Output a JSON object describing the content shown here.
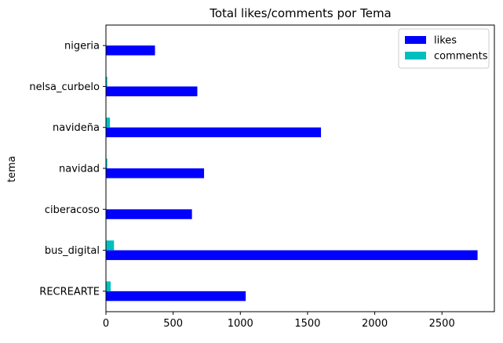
{
  "chart_data": {
    "type": "bar",
    "orientation": "horizontal",
    "title": "Total likes/comments por Tema",
    "ylabel": "tema",
    "xlabel": "",
    "categories": [
      "RECREARTE",
      "bus_digital",
      "ciberacoso",
      "navidad",
      "navideña",
      "nelsa_curbelo",
      "nigeria"
    ],
    "series": [
      {
        "name": "likes",
        "color": "#0000ff",
        "values": [
          1040,
          2765,
          640,
          730,
          1600,
          680,
          365
        ]
      },
      {
        "name": "comments",
        "color": "#00bfbf",
        "values": [
          35,
          60,
          3,
          10,
          30,
          10,
          3
        ]
      }
    ],
    "xlim": [
      0,
      2890
    ],
    "xticks": [
      0,
      500,
      1000,
      1500,
      2000,
      2500
    ],
    "grid": false,
    "legend_position": "top-right"
  }
}
